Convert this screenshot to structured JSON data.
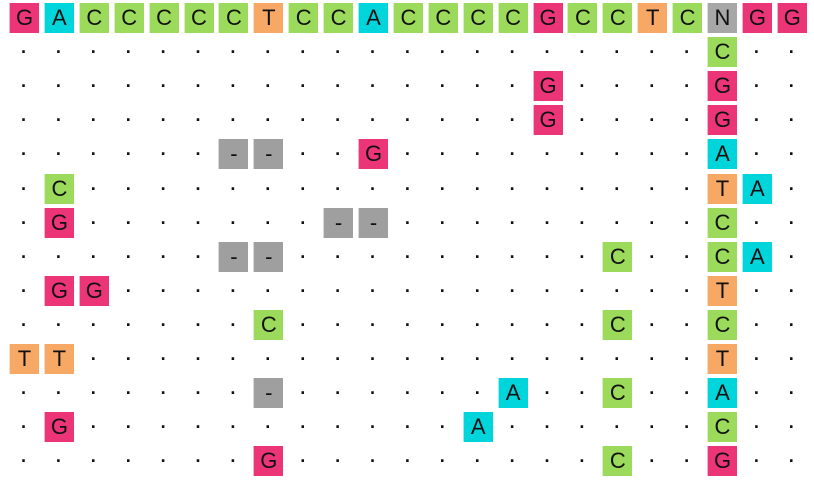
{
  "colors": {
    "A": "#00d5dc",
    "C": "#9bda5a",
    "G": "#ec3577",
    "T": "#f8a865",
    "N": "#a7a7a7",
    "-": "#9f9f9f"
  },
  "rows": [
    [
      "G",
      "A",
      "C",
      "C",
      "C",
      "C",
      "C",
      "T",
      "C",
      "C",
      "A",
      "C",
      "C",
      "C",
      "C",
      "G",
      "C",
      "C",
      "T",
      "C",
      "N",
      "G",
      "G"
    ],
    [
      ".",
      ".",
      ".",
      ".",
      ".",
      ".",
      ".",
      ".",
      ".",
      ".",
      ".",
      ".",
      ".",
      ".",
      ".",
      ".",
      ".",
      ".",
      ".",
      ".",
      "C",
      ".",
      "."
    ],
    [
      ".",
      ".",
      ".",
      ".",
      ".",
      ".",
      ".",
      ".",
      ".",
      ".",
      ".",
      ".",
      ".",
      ".",
      ".",
      "G",
      ".",
      ".",
      ".",
      ".",
      "G",
      ".",
      "."
    ],
    [
      ".",
      ".",
      ".",
      ".",
      ".",
      ".",
      ".",
      ".",
      ".",
      ".",
      ".",
      ".",
      ".",
      ".",
      ".",
      "G",
      ".",
      ".",
      ".",
      ".",
      "G",
      ".",
      "."
    ],
    [
      ".",
      ".",
      ".",
      ".",
      ".",
      ".",
      "-",
      "-",
      ".",
      ".",
      "G",
      ".",
      ".",
      ".",
      ".",
      ".",
      ".",
      ".",
      ".",
      ".",
      "A",
      ".",
      "."
    ],
    [
      ".",
      "C",
      ".",
      ".",
      ".",
      ".",
      ".",
      ".",
      ".",
      ".",
      ".",
      ".",
      ".",
      ".",
      ".",
      ".",
      ".",
      ".",
      ".",
      ".",
      "T",
      "A",
      "."
    ],
    [
      ".",
      "G",
      ".",
      ".",
      ".",
      ".",
      ".",
      ".",
      ".",
      "-",
      "-",
      ".",
      ".",
      ".",
      ".",
      ".",
      ".",
      ".",
      ".",
      ".",
      "C",
      ".",
      "."
    ],
    [
      ".",
      ".",
      ".",
      ".",
      ".",
      ".",
      "-",
      "-",
      ".",
      ".",
      ".",
      ".",
      ".",
      ".",
      ".",
      ".",
      ".",
      "C",
      ".",
      ".",
      "C",
      "A",
      "."
    ],
    [
      ".",
      "G",
      "G",
      ".",
      ".",
      ".",
      ".",
      ".",
      ".",
      ".",
      ".",
      ".",
      ".",
      ".",
      ".",
      ".",
      ".",
      ".",
      ".",
      ".",
      "T",
      ".",
      "."
    ],
    [
      ".",
      ".",
      ".",
      ".",
      ".",
      ".",
      ".",
      "C",
      ".",
      ".",
      ".",
      ".",
      ".",
      ".",
      ".",
      ".",
      ".",
      "C",
      ".",
      ".",
      "C",
      ".",
      "."
    ],
    [
      "T",
      "T",
      ".",
      ".",
      ".",
      ".",
      ".",
      ".",
      ".",
      ".",
      ".",
      ".",
      ".",
      ".",
      ".",
      ".",
      ".",
      ".",
      ".",
      ".",
      "T",
      ".",
      "."
    ],
    [
      ".",
      ".",
      ".",
      ".",
      ".",
      ".",
      ".",
      "-",
      ".",
      ".",
      ".",
      ".",
      ".",
      ".",
      "A",
      ".",
      ".",
      "C",
      ".",
      ".",
      "A",
      ".",
      "."
    ],
    [
      ".",
      "G",
      ".",
      ".",
      ".",
      ".",
      ".",
      ".",
      ".",
      ".",
      ".",
      ".",
      ".",
      "A",
      ".",
      ".",
      ".",
      ".",
      ".",
      ".",
      "C",
      ".",
      "."
    ],
    [
      ".",
      ".",
      ".",
      ".",
      ".",
      ".",
      ".",
      "G",
      ".",
      ".",
      ".",
      ".",
      ".",
      ".",
      ".",
      ".",
      ".",
      "C",
      ".",
      ".",
      "G",
      ".",
      "."
    ]
  ]
}
